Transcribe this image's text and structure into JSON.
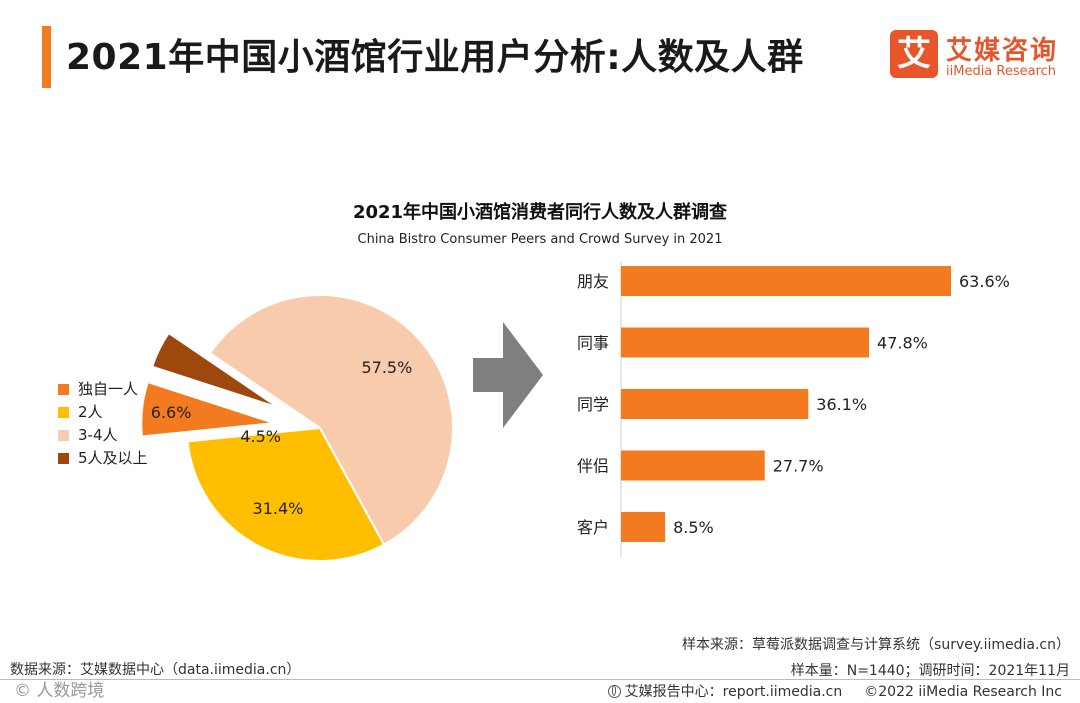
{
  "header": {
    "title": "2021年中国小酒馆行业用户分析:人数及人群",
    "logo": {
      "badge": "艾",
      "name": "艾媒咨询",
      "sub": "iiMedia Research"
    }
  },
  "colors": {
    "accent": "#f47a20",
    "bar": "#f47a20",
    "slice_1": "#f47a20",
    "slice_2": "#ffbf00",
    "slice_3": "#f8cbad",
    "slice_4": "#9e480e",
    "arrow": "#7f7f7f"
  },
  "chart_data": [
    {
      "type": "pie",
      "title": "2021年中国小酒馆消费者同行人数及人群调查",
      "subtitle": "China Bistro Consumer Peers and Crowd Survey in 2021",
      "legend_position": "left",
      "slices": [
        {
          "label": "独自一人",
          "value": 6.6,
          "value_label": "6.6%",
          "exploded": true
        },
        {
          "label": "2人",
          "value": 31.4,
          "value_label": "31.4%",
          "exploded": false
        },
        {
          "label": "3-4人",
          "value": 57.5,
          "value_label": "57.5%",
          "exploded": false
        },
        {
          "label": "5人及以上",
          "value": 4.5,
          "value_label": "4.5%",
          "exploded": true
        }
      ]
    },
    {
      "type": "bar",
      "orientation": "horizontal",
      "categories": [
        "朋友",
        "同事",
        "同学",
        "伴侣",
        "客户"
      ],
      "values": [
        63.6,
        47.8,
        36.1,
        27.7,
        8.5
      ],
      "value_labels": [
        "63.6%",
        "47.8%",
        "36.1%",
        "27.7%",
        "8.5%"
      ],
      "xlim": [
        0,
        70
      ],
      "grid": false
    }
  ],
  "footer": {
    "source_left": "数据来源：艾媒数据中心（data.iimedia.cn）",
    "sample_source": "样本来源：草莓派数据调查与计算系统（survey.iimedia.cn）",
    "sample_size": "样本量：N=1440；调研时间：2021年11月",
    "report_center": "艾媒报告中心：report.iimedia.cn",
    "copyright": "©2022  iiMedia Research  Inc",
    "watermark": "©  人数跨境"
  }
}
